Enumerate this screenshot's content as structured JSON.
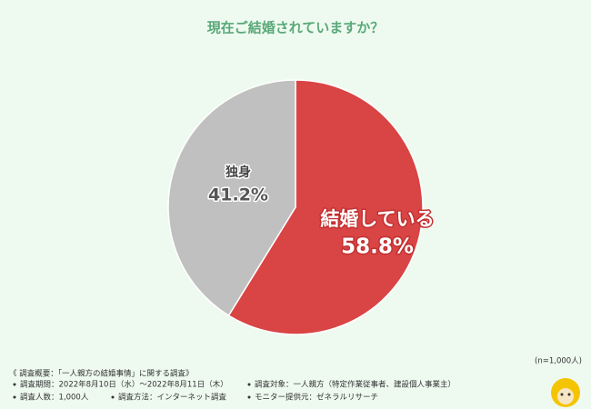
{
  "chart_data": {
    "type": "pie",
    "title": "現在ご結婚されていますか？",
    "categories": [
      "結婚している",
      "独身"
    ],
    "values": [
      58.8,
      41.2
    ],
    "value_labels": [
      "58.8%",
      "41.2%"
    ],
    "colors": [
      "#d94444",
      "#c0c0c0"
    ]
  },
  "sample_note": "(n=1,000人)",
  "notes": {
    "heading": "《 調査概要：「一人親方の結婚事情」に関する調査》",
    "items": [
      "調査期間：2022年8月10日（水）～2022年8月11日（木）",
      "調査人数：1,000人",
      "調査方法：インターネット調査",
      "調査対象：一人親方（特定作業従事者、建設個人事業主）",
      "モニター提供元：ゼネラルリサーチ"
    ]
  }
}
